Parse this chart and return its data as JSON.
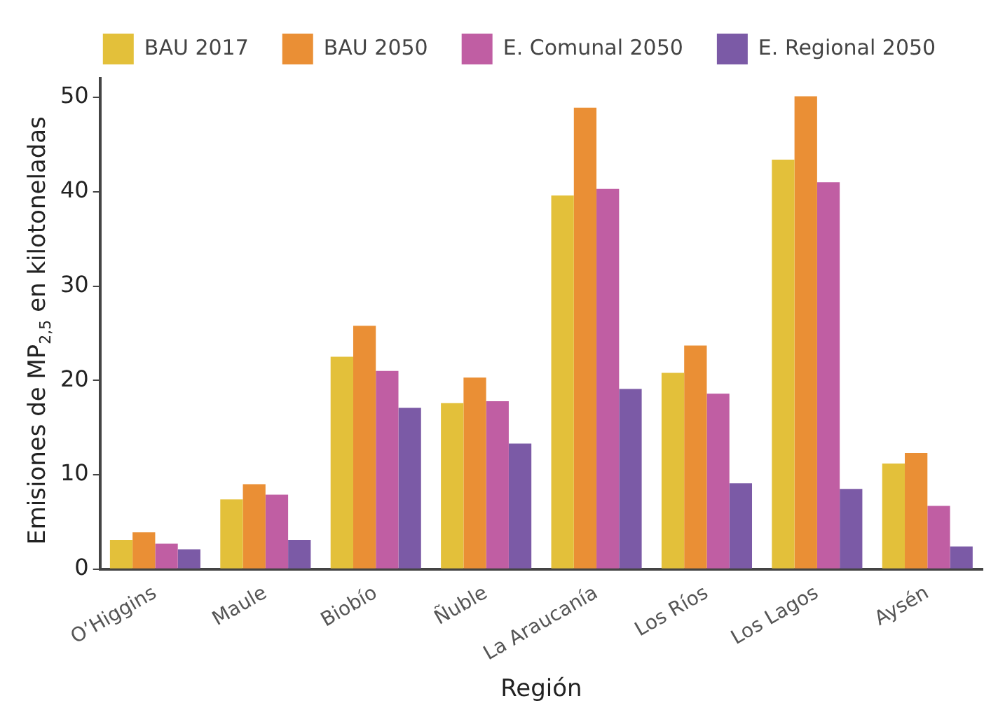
{
  "chart_data": {
    "type": "bar",
    "xlabel": "Región",
    "ylabel": "Emisiones de MP$_{2,5}$ en kilotoneladas",
    "categories": [
      "O’Higgins",
      "Maule",
      "Biobío",
      "Ñuble",
      "La Araucanía",
      "Los Ríos",
      "Los Lagos",
      "Aysén"
    ],
    "series": [
      {
        "name": "BAU 2017",
        "color": "#e3c03a",
        "values": [
          3.1,
          7.4,
          22.5,
          17.6,
          39.6,
          20.8,
          43.4,
          11.2
        ]
      },
      {
        "name": "BAU 2050",
        "color": "#ea8f35",
        "values": [
          3.9,
          9.0,
          25.8,
          20.3,
          48.9,
          23.7,
          50.1,
          12.3
        ]
      },
      {
        "name": "E. Comunal 2050",
        "color": "#c05ea3",
        "values": [
          2.7,
          7.9,
          21.0,
          17.8,
          40.3,
          18.6,
          41.0,
          6.7
        ]
      },
      {
        "name": "E. Regional 2050",
        "color": "#7b5aa6",
        "values": [
          2.1,
          3.1,
          17.1,
          13.3,
          19.1,
          9.1,
          8.5,
          2.4
        ]
      }
    ],
    "ylim": [
      0,
      52
    ],
    "yticks": [
      0,
      10,
      20,
      30,
      40,
      50
    ],
    "grid": false,
    "legend": "top"
  }
}
